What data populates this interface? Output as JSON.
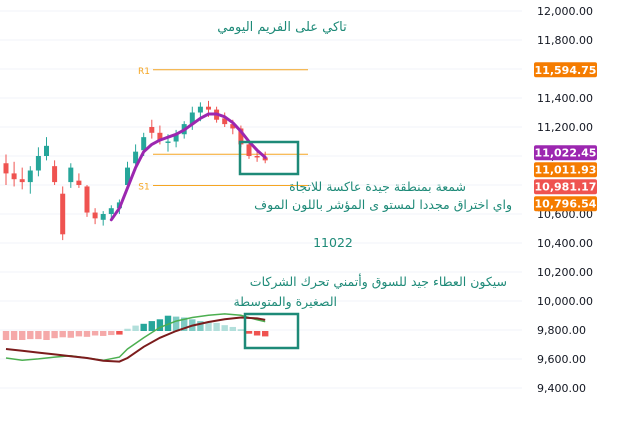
{
  "colors": {
    "up": "#26a69a",
    "down": "#ef5350",
    "ma": "#9c27b0",
    "pivot": "#f5a623",
    "box": "#1e8a78",
    "annotation": "#1e8a78",
    "osc_green": "#4caf50",
    "osc_dark": "#7b1c1c",
    "axis_text": "#131722",
    "tag_white": "#ffffff"
  },
  "chart_data": {
    "type": "candlestick",
    "title": "تاكي على الفريم اليومي",
    "y_axis": {
      "ticks": [
        12000,
        11800,
        11600,
        11400,
        11200,
        11000,
        10800,
        10600,
        10400,
        10200,
        10000,
        9800,
        9600,
        9400
      ],
      "tick_labels": [
        "12,000.00",
        "11,800.00",
        "11,600.00",
        "11,400.00",
        "11,200.00",
        "11,000.00",
        "10,800.00",
        "10,600.00",
        "10,400.00",
        "10,200.00",
        "10,000.00",
        "9,800.00",
        "9,600.00",
        "9,400.00"
      ],
      "ylim": [
        9360,
        12060
      ]
    },
    "candles": [
      {
        "o": 10950,
        "h": 11010,
        "l": 10800,
        "c": 10880
      },
      {
        "o": 10880,
        "h": 10960,
        "l": 10790,
        "c": 10840
      },
      {
        "o": 10840,
        "h": 10920,
        "l": 10770,
        "c": 10820
      },
      {
        "o": 10820,
        "h": 10930,
        "l": 10740,
        "c": 10900
      },
      {
        "o": 10900,
        "h": 11060,
        "l": 10860,
        "c": 11000
      },
      {
        "o": 11000,
        "h": 11130,
        "l": 10970,
        "c": 11070
      },
      {
        "o": 10930,
        "h": 10970,
        "l": 10800,
        "c": 10820
      },
      {
        "o": 10740,
        "h": 10790,
        "l": 10420,
        "c": 10460
      },
      {
        "o": 10820,
        "h": 10950,
        "l": 10780,
        "c": 10920
      },
      {
        "o": 10830,
        "h": 10880,
        "l": 10780,
        "c": 10800
      },
      {
        "o": 10790,
        "h": 10800,
        "l": 10580,
        "c": 10610
      },
      {
        "o": 10610,
        "h": 10640,
        "l": 10530,
        "c": 10570
      },
      {
        "o": 10560,
        "h": 10620,
        "l": 10520,
        "c": 10600
      },
      {
        "o": 10600,
        "h": 10660,
        "l": 10560,
        "c": 10640
      },
      {
        "o": 10640,
        "h": 10700,
        "l": 10600,
        "c": 10680
      },
      {
        "o": 10800,
        "h": 10960,
        "l": 10780,
        "c": 10920
      },
      {
        "o": 10950,
        "h": 11080,
        "l": 10900,
        "c": 11030
      },
      {
        "o": 11040,
        "h": 11160,
        "l": 11000,
        "c": 11130
      },
      {
        "o": 11200,
        "h": 11250,
        "l": 11120,
        "c": 11160
      },
      {
        "o": 11160,
        "h": 11210,
        "l": 11080,
        "c": 11110
      },
      {
        "o": 11090,
        "h": 11150,
        "l": 11030,
        "c": 11100
      },
      {
        "o": 11100,
        "h": 11180,
        "l": 11060,
        "c": 11150
      },
      {
        "o": 11150,
        "h": 11240,
        "l": 11120,
        "c": 11220
      },
      {
        "o": 11220,
        "h": 11340,
        "l": 11180,
        "c": 11300
      },
      {
        "o": 11300,
        "h": 11370,
        "l": 11240,
        "c": 11340
      },
      {
        "o": 11340,
        "h": 11380,
        "l": 11270,
        "c": 11320
      },
      {
        "o": 11320,
        "h": 11340,
        "l": 11230,
        "c": 11250
      },
      {
        "o": 11260,
        "h": 11300,
        "l": 11200,
        "c": 11220
      },
      {
        "o": 11220,
        "h": 11250,
        "l": 11150,
        "c": 11190
      },
      {
        "o": 11190,
        "h": 11210,
        "l": 11060,
        "c": 11080
      },
      {
        "o": 11080,
        "h": 11100,
        "l": 10980,
        "c": 11000
      },
      {
        "o": 11000,
        "h": 11050,
        "l": 10960,
        "c": 10990
      },
      {
        "o": 10990,
        "h": 11030,
        "l": 10950,
        "c": 10970
      }
    ],
    "moving_average": [
      {
        "i": 13,
        "v": 10560
      },
      {
        "i": 14,
        "v": 10640
      },
      {
        "i": 15,
        "v": 10780
      },
      {
        "i": 16,
        "v": 10920
      },
      {
        "i": 17,
        "v": 11030
      },
      {
        "i": 18,
        "v": 11080
      },
      {
        "i": 19,
        "v": 11110
      },
      {
        "i": 20,
        "v": 11130
      },
      {
        "i": 21,
        "v": 11150
      },
      {
        "i": 22,
        "v": 11180
      },
      {
        "i": 23,
        "v": 11220
      },
      {
        "i": 24,
        "v": 11260
      },
      {
        "i": 25,
        "v": 11290
      },
      {
        "i": 26,
        "v": 11290
      },
      {
        "i": 27,
        "v": 11270
      },
      {
        "i": 28,
        "v": 11230
      },
      {
        "i": 29,
        "v": 11170
      },
      {
        "i": 30,
        "v": 11100
      },
      {
        "i": 31,
        "v": 11040
      },
      {
        "i": 32,
        "v": 10990
      }
    ],
    "pivots": [
      {
        "label": "R1",
        "value": 11594.75
      },
      {
        "label": "",
        "value": 11011.93
      },
      {
        "label": "S1",
        "value": 10796.54
      }
    ],
    "price_tags": [
      {
        "label": "11,594.75",
        "value": 11594.75,
        "color": "#f57c00"
      },
      {
        "label": "11,022.45",
        "value": 11022.45,
        "color": "#9c27b0"
      },
      {
        "label": "11,011.93",
        "value": 11011.93,
        "color": "#f57c00"
      },
      {
        "label": "10,981.17",
        "value": 10981.17,
        "color": "#ef5350"
      },
      {
        "label": "10,796.54",
        "value": 10796.54,
        "color": "#f57c00"
      }
    ],
    "oscillator": {
      "histogram": [
        {
          "v": -2,
          "c": "#f5a9a9"
        },
        {
          "v": -2,
          "c": "#f5a9a9"
        },
        {
          "v": -2,
          "c": "#f5a9a9"
        },
        {
          "v": -1.8,
          "c": "#f5a9a9"
        },
        {
          "v": -1.8,
          "c": "#f5a9a9"
        },
        {
          "v": -2,
          "c": "#f5a9a9"
        },
        {
          "v": -1.6,
          "c": "#f5a9a9"
        },
        {
          "v": -1.4,
          "c": "#f5a9a9"
        },
        {
          "v": -1.5,
          "c": "#f5a9a9"
        },
        {
          "v": -1.2,
          "c": "#f5a9a9"
        },
        {
          "v": -1.3,
          "c": "#f5a9a9"
        },
        {
          "v": -1.0,
          "c": "#f5a9a9"
        },
        {
          "v": -1.1,
          "c": "#f5a9a9"
        },
        {
          "v": -0.9,
          "c": "#f5a9a9"
        },
        {
          "v": -0.8,
          "c": "#ef5350"
        },
        {
          "v": 0.5,
          "c": "#b2dfdb"
        },
        {
          "v": 1.2,
          "c": "#b2dfdb"
        },
        {
          "v": 1.6,
          "c": "#26a69a"
        },
        {
          "v": 2.2,
          "c": "#26a69a"
        },
        {
          "v": 2.6,
          "c": "#26a69a"
        },
        {
          "v": 3.4,
          "c": "#26a69a"
        },
        {
          "v": 3.2,
          "c": "#80cbc4"
        },
        {
          "v": 3.0,
          "c": "#80cbc4"
        },
        {
          "v": 2.6,
          "c": "#80cbc4"
        },
        {
          "v": 2.2,
          "c": "#80cbc4"
        },
        {
          "v": 2.0,
          "c": "#b2dfdb"
        },
        {
          "v": 1.8,
          "c": "#b2dfdb"
        },
        {
          "v": 1.3,
          "c": "#b2dfdb"
        },
        {
          "v": 0.9,
          "c": "#b2dfdb"
        },
        {
          "v": 0.4,
          "c": "#b2dfdb"
        },
        {
          "v": -0.6,
          "c": "#ef5350"
        },
        {
          "v": -1.0,
          "c": "#ef5350"
        },
        {
          "v": -1.2,
          "c": "#ef5350"
        }
      ],
      "fast_line": [
        {
          "i": 0,
          "v": -6
        },
        {
          "i": 2,
          "v": -6.5
        },
        {
          "i": 4,
          "v": -6.2
        },
        {
          "i": 6,
          "v": -5.8
        },
        {
          "i": 8,
          "v": -5.5
        },
        {
          "i": 10,
          "v": -6
        },
        {
          "i": 12,
          "v": -6.5
        },
        {
          "i": 14,
          "v": -5.8
        },
        {
          "i": 15,
          "v": -4
        },
        {
          "i": 17,
          "v": -1.5
        },
        {
          "i": 19,
          "v": 0.8
        },
        {
          "i": 21,
          "v": 2.2
        },
        {
          "i": 23,
          "v": 3
        },
        {
          "i": 25,
          "v": 3.5
        },
        {
          "i": 27,
          "v": 3.8
        },
        {
          "i": 29,
          "v": 3.5
        },
        {
          "i": 31,
          "v": 2.5
        },
        {
          "i": 32,
          "v": 2.1
        }
      ],
      "slow_line": [
        {
          "i": 0,
          "v": -4
        },
        {
          "i": 2,
          "v": -4.4
        },
        {
          "i": 4,
          "v": -4.8
        },
        {
          "i": 6,
          "v": -5.2
        },
        {
          "i": 8,
          "v": -5.6
        },
        {
          "i": 10,
          "v": -6
        },
        {
          "i": 12,
          "v": -6.6
        },
        {
          "i": 14,
          "v": -6.8
        },
        {
          "i": 15,
          "v": -6
        },
        {
          "i": 17,
          "v": -3.5
        },
        {
          "i": 19,
          "v": -1.5
        },
        {
          "i": 21,
          "v": 0
        },
        {
          "i": 23,
          "v": 1.2
        },
        {
          "i": 25,
          "v": 2
        },
        {
          "i": 27,
          "v": 2.6
        },
        {
          "i": 29,
          "v": 3
        },
        {
          "i": 31,
          "v": 2.8
        },
        {
          "i": 32,
          "v": 2.5
        }
      ]
    }
  },
  "annotations": {
    "reversal_text": "شمعة بمنطقة جيدة عاكسة للاتجاة",
    "breakout_text": "واي اختراق مجددا لمستو ى المؤشر باللون الموف",
    "level_text": "11022",
    "momentum_line1": "سيكون العطاء جيد للسوق وأتمني تحرك الشركات",
    "momentum_line2": "الصغيرة والمتوسطة"
  }
}
